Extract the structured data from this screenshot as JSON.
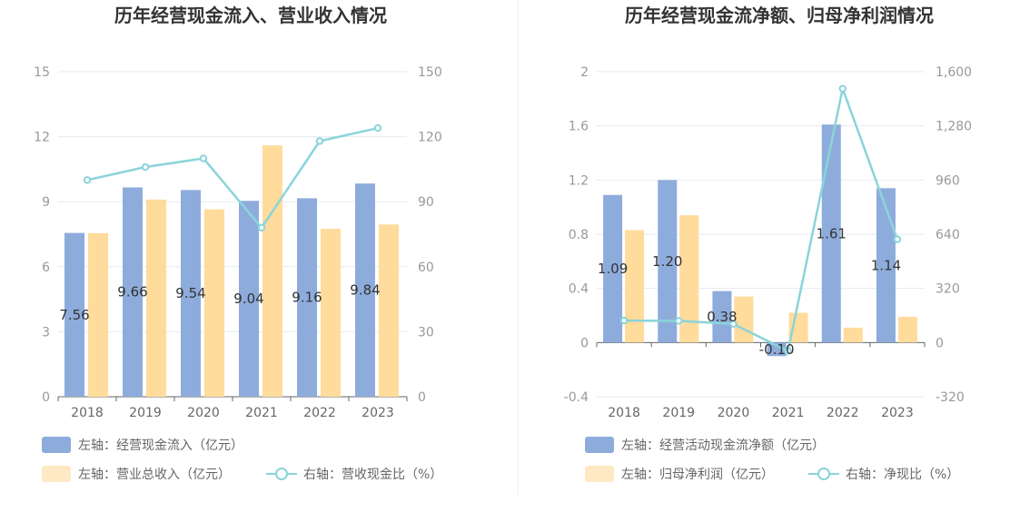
{
  "chart_data": [
    {
      "type": "bar",
      "title": "历年经营现金流入、营业收入情况",
      "categories": [
        "2018",
        "2019",
        "2020",
        "2021",
        "2022",
        "2023"
      ],
      "left_axis": {
        "ylim": [
          0,
          15
        ],
        "ticks": [
          0,
          3,
          6,
          9,
          12,
          15
        ]
      },
      "right_axis": {
        "ylim": [
          0,
          150
        ],
        "ticks": [
          0,
          30,
          60,
          90,
          120,
          150
        ]
      },
      "grid": true,
      "legend_position": "bottom-left",
      "series": [
        {
          "name": "左轴：经营现金流入（亿元）",
          "kind": "bar",
          "axis": "left",
          "color": "#8eacdb",
          "values": [
            7.56,
            9.66,
            9.54,
            9.04,
            9.16,
            9.84
          ],
          "labels": [
            "7.56",
            "9.66",
            "9.54",
            "9.04",
            "9.16",
            "9.84"
          ]
        },
        {
          "name": "左轴：营业总收入（亿元）",
          "kind": "bar",
          "axis": "left",
          "color": "#ffdb9c",
          "values": [
            7.55,
            9.1,
            8.65,
            11.6,
            7.75,
            7.95
          ]
        },
        {
          "name": "右轴：营收现金比（%）",
          "kind": "line",
          "axis": "right",
          "color": "#8ad4da",
          "values": [
            100,
            106,
            110,
            78,
            118,
            124
          ]
        }
      ]
    },
    {
      "type": "bar",
      "title": "历年经营现金流净额、归母净利润情况",
      "categories": [
        "2018",
        "2019",
        "2020",
        "2021",
        "2022",
        "2023"
      ],
      "left_axis": {
        "ylim": [
          -0.4,
          2
        ],
        "ticks": [
          -0.4,
          0,
          0.4,
          0.8,
          1.2,
          1.6,
          2
        ],
        "tick_labels": [
          "-0.4",
          "0",
          "0.4",
          "0.8",
          "1.2",
          "1.6",
          "2"
        ]
      },
      "right_axis": {
        "ylim": [
          -320,
          1600
        ],
        "ticks": [
          -320,
          0,
          320,
          640,
          960,
          1280,
          1600
        ],
        "tick_labels": [
          "-320",
          "0",
          "320",
          "640",
          "960",
          "1,280",
          "1,600"
        ]
      },
      "grid": true,
      "legend_position": "bottom-left",
      "series": [
        {
          "name": "左轴：经营活动现金流净额（亿元）",
          "kind": "bar",
          "axis": "left",
          "color": "#8eacdb",
          "values": [
            1.09,
            1.2,
            0.38,
            -0.1,
            1.61,
            1.14
          ],
          "labels": [
            "1.09",
            "1.20",
            "0.38",
            "-0.10",
            "1.61",
            "1.14"
          ]
        },
        {
          "name": "左轴：归母净利润（亿元）",
          "kind": "bar",
          "axis": "left",
          "color": "#ffdb9c",
          "values": [
            0.83,
            0.94,
            0.34,
            0.22,
            0.11,
            0.19
          ]
        },
        {
          "name": "右轴：净现比（%）",
          "kind": "line",
          "axis": "right",
          "color": "#8ad4da",
          "values": [
            130,
            128,
            110,
            -50,
            1500,
            610
          ]
        }
      ]
    }
  ]
}
